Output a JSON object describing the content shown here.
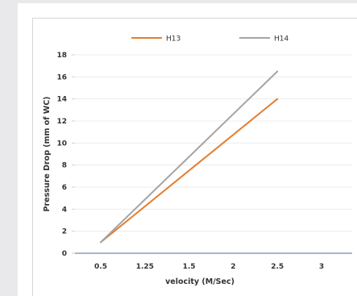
{
  "chart_data": {
    "type": "line",
    "title": "",
    "xlabel": "velocity (M/Sec)",
    "ylabel": "Pressure Drop (mm of WC)",
    "x_ticks": [
      "0.5",
      "1.25",
      "1.5",
      "2",
      "2.5",
      "3"
    ],
    "y_ticks": [
      "0",
      "2",
      "4",
      "6",
      "8",
      "10",
      "12",
      "14",
      "16",
      "18"
    ],
    "ylim": [
      0,
      18
    ],
    "legend_position": "top",
    "grid": true,
    "series": [
      {
        "name": "H13",
        "color": "#e57e2f",
        "points": [
          {
            "x": "0.5",
            "y": 1
          },
          {
            "x": "2.5",
            "y": 14
          }
        ]
      },
      {
        "name": "H14",
        "color": "#a5a5a5",
        "points": [
          {
            "x": "0.5",
            "y": 1
          },
          {
            "x": "2.5",
            "y": 16.5
          }
        ]
      }
    ]
  }
}
